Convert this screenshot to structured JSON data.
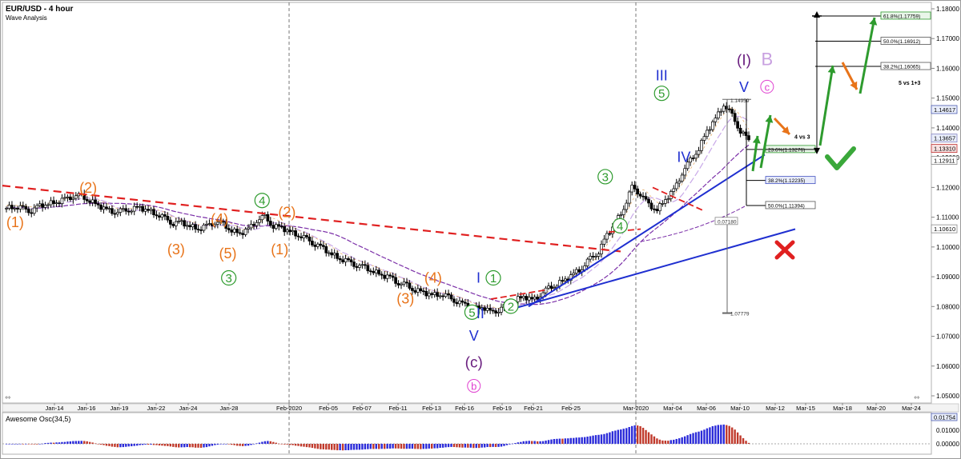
{
  "window": {
    "title": "EUR/USD - 4 hour",
    "subtitle": "Wave Analysis"
  },
  "oscillator": {
    "title": "Awesome Osc(34,5)",
    "last_value": "0.01754",
    "ticks": [
      "0.01000",
      "0.00000"
    ]
  },
  "colors": {
    "up_bar": "#2b2bd9",
    "down_bar": "#c0392b",
    "resistance": "#e02020",
    "support": "#1f2fd0",
    "ma_purple": "#7b2fa8",
    "ma_light": "#c8a8e8",
    "orange": "#e8741a",
    "green": "#2e9b2e",
    "fib_box": "#2e9b2e"
  },
  "chart_data": {
    "type": "candlestick",
    "title": "EUR/USD - 4 hour",
    "subtitle": "Wave Analysis",
    "ylim": [
      1.05,
      1.18
    ],
    "y_ticks": [
      "1.18000",
      "1.17000",
      "1.16000",
      "1.15000",
      "1.14000",
      "1.13000",
      "1.12000",
      "1.11000",
      "1.10000",
      "1.09000",
      "1.08000",
      "1.07000",
      "1.06000",
      "1.05000"
    ],
    "x_ticks": [
      "Jan-14",
      "Jan-16",
      "Jan-19",
      "Jan-22",
      "Jan-24",
      "Jan-28",
      "Feb-2020",
      "Feb-05",
      "Feb-07",
      "Feb-11",
      "Feb-13",
      "Feb-16",
      "Feb-19",
      "Feb-21",
      "Feb-25",
      "Mar-2020",
      "Mar-04",
      "Mar-06",
      "Mar-10",
      "Mar-12",
      "Mar-15",
      "Mar-18",
      "Mar-20",
      "Mar-24"
    ],
    "price_tags": [
      {
        "text": "1.14617",
        "value": 1.14617
      },
      {
        "text": "1.13657",
        "value": 1.13657
      },
      {
        "text": "1.13310",
        "value": 1.1331
      },
      {
        "text": "1.12911",
        "value": 1.12911
      },
      {
        "text": "1.10610",
        "value": 1.1061
      }
    ],
    "close_series": [
      1.113,
      1.1135,
      1.1128,
      1.1122,
      1.1138,
      1.1145,
      1.115,
      1.116,
      1.1172,
      1.117,
      1.1155,
      1.114,
      1.1125,
      1.1118,
      1.112,
      1.1128,
      1.1132,
      1.1122,
      1.111,
      1.1095,
      1.108,
      1.1082,
      1.107,
      1.106,
      1.107,
      1.1085,
      1.1075,
      1.1055,
      1.1045,
      1.106,
      1.109,
      1.11,
      1.107,
      1.1065,
      1.105,
      1.104,
      1.1025,
      1.101,
      1.0995,
      1.0975,
      1.096,
      1.095,
      1.094,
      1.093,
      1.0918,
      1.0905,
      1.0898,
      1.088,
      1.087,
      1.0855,
      1.0848,
      1.0838,
      1.0842,
      1.083,
      1.0818,
      1.0805,
      1.079,
      1.08,
      1.078,
      1.079,
      1.0805,
      1.082,
      1.0835,
      1.082,
      1.084,
      1.086,
      1.0875,
      1.089,
      1.091,
      1.093,
      1.096,
      1.0985,
      1.104,
      1.108,
      1.113,
      1.12,
      1.118,
      1.114,
      1.1125,
      1.116,
      1.119,
      1.125,
      1.129,
      1.133,
      1.139,
      1.143,
      1.148,
      1.144,
      1.139,
      1.136
    ],
    "annotations": {
      "wave_labels": [
        {
          "text": "(1)",
          "color": "orange",
          "x": 1.2,
          "y": 1.1067
        },
        {
          "text": "(2)",
          "color": "orange",
          "x": 9.1,
          "y": 1.1182
        },
        {
          "text": "(3)",
          "color": "orange",
          "x": 18.6,
          "y": 1.0975
        },
        {
          "text": "(4)",
          "color": "orange",
          "x": 23.3,
          "y": 1.1078
        },
        {
          "text": "(5)",
          "color": "orange",
          "x": 24.2,
          "y": 1.0962
        },
        {
          "text": "(1)",
          "color": "orange",
          "x": 29.8,
          "y": 1.0975
        },
        {
          "text": "(2)",
          "color": "orange",
          "x": 30.6,
          "y": 1.11
        },
        {
          "text": "(3)",
          "color": "orange",
          "x": 43.4,
          "y": 1.081
        },
        {
          "text": "(4)",
          "color": "orange",
          "x": 46.4,
          "y": 1.088
        },
        {
          "text": "4",
          "color": "green",
          "x": 27.9,
          "y": 1.114
        },
        {
          "text": "3",
          "color": "green",
          "x": 24.3,
          "y": 1.088
        },
        {
          "text": "1",
          "color": "green",
          "x": 52.9,
          "y": 1.088
        },
        {
          "text": "2",
          "color": "green",
          "x": 54.8,
          "y": 1.0785
        },
        {
          "text": "5",
          "color": "green",
          "x": 50.6,
          "y": 1.0765
        },
        {
          "text": "3",
          "color": "green",
          "x": 65.0,
          "y": 1.122
        },
        {
          "text": "4",
          "color": "green",
          "x": 66.6,
          "y": 1.1055
        },
        {
          "text": "5",
          "color": "green",
          "x": 71.1,
          "y": 1.15
        },
        {
          "text": "I",
          "color": "blue",
          "x": 51.3,
          "y": 1.088
        },
        {
          "text": "II",
          "color": "blue",
          "x": 51.5,
          "y": 1.076
        },
        {
          "text": "V",
          "color": "blue",
          "x": 50.8,
          "y": 1.0685
        },
        {
          "text": "III",
          "color": "blue",
          "x": 71.1,
          "y": 1.156
        },
        {
          "text": "IV",
          "color": "blue",
          "x": 73.5,
          "y": 1.1285
        },
        {
          "text": "V",
          "color": "blue",
          "x": 80.0,
          "y": 1.152
        },
        {
          "text": "(c)",
          "color": "purple",
          "x": 50.8,
          "y": 1.0595
        },
        {
          "text": "b",
          "color": "pink",
          "x": 50.8,
          "y": 1.052
        },
        {
          "text": "(I)",
          "color": "purple",
          "x": 80.0,
          "y": 1.161
        },
        {
          "text": "B",
          "color": "lightpurple",
          "x": 82.5,
          "y": 1.161
        },
        {
          "text": "c",
          "color": "pink",
          "x": 82.5,
          "y": 1.1525
        }
      ],
      "fib_labels": [
        {
          "text": "61.8%(1.17759)",
          "value": 1.17759
        },
        {
          "text": "50.0%(1.16912)",
          "value": 1.16912
        },
        {
          "text": "38.2%(1.16065)",
          "value": 1.16065
        },
        {
          "text": "23.6%(1.13276)",
          "value": 1.13276
        },
        {
          "text": "38.2%(1.12235)",
          "value": 1.12235
        },
        {
          "text": "50.0%(1.11394)",
          "value": 1.11394
        }
      ],
      "notes": [
        {
          "text": "5 vs 1+3"
        },
        {
          "text": "4 vs 3"
        },
        {
          "text": "1.14959",
          "value": 1.14959
        },
        {
          "text": "0.07180"
        },
        {
          "text": "1.07779",
          "value": 1.07779
        }
      ]
    }
  }
}
